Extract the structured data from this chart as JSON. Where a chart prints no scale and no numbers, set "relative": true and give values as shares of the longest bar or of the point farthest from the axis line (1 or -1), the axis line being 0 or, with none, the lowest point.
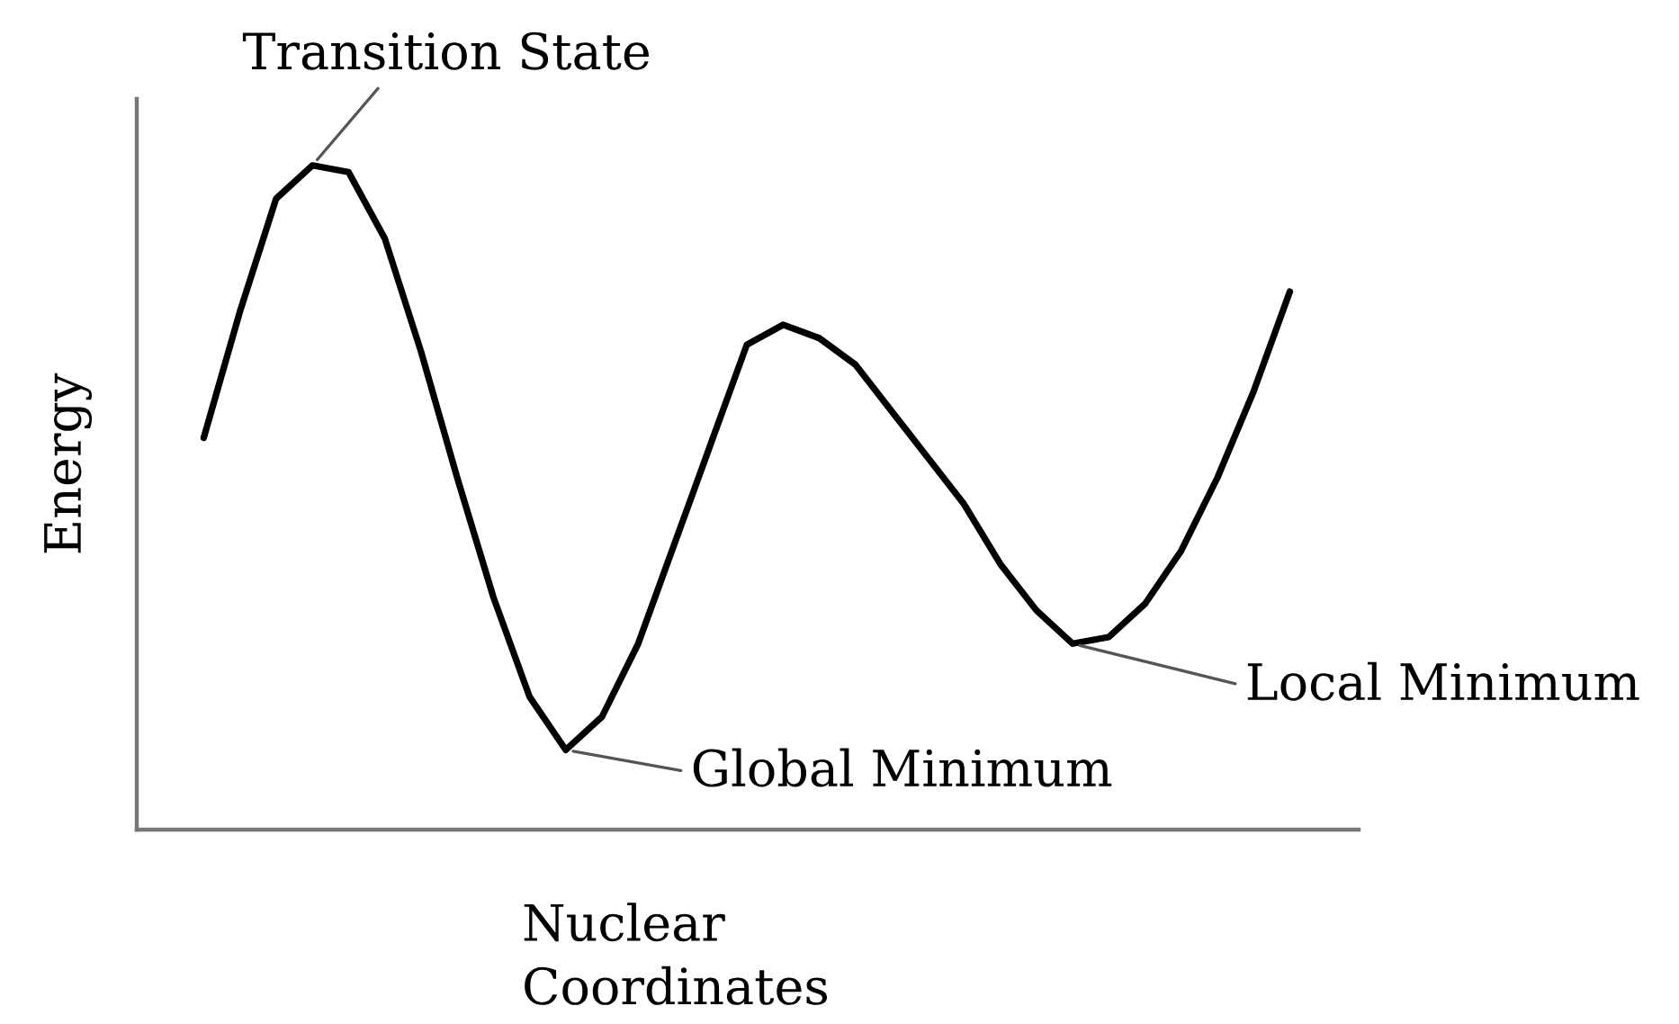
{
  "chart_data": {
    "type": "line",
    "relative": true,
    "xlabel": "Nuclear\nCoordinates",
    "ylabel": "Energy",
    "categories": [
      null,
      null,
      null,
      null,
      null,
      null,
      null,
      null,
      null,
      null,
      null,
      null,
      null,
      null,
      null,
      null,
      null,
      null,
      null,
      null,
      null,
      null,
      null,
      null,
      null,
      null,
      null,
      null,
      null,
      null,
      null
    ],
    "series": [
      {
        "color": "#000000",
        "values": [
          0.59,
          0.78,
          0.95,
          1.0,
          0.99,
          0.89,
          0.72,
          0.53,
          0.35,
          0.2,
          0.12,
          0.17,
          0.28,
          0.43,
          0.58,
          0.73,
          0.76,
          0.74,
          0.7,
          0.63,
          0.56,
          0.49,
          0.4,
          0.33,
          0.28,
          0.29,
          0.34,
          0.42,
          0.53,
          0.66,
          0.81
        ]
      }
    ],
    "annotations": [
      "Transition State",
      "Global Minimum",
      "Local Minimum"
    ],
    "marker": "none",
    "line_style": "solid"
  }
}
